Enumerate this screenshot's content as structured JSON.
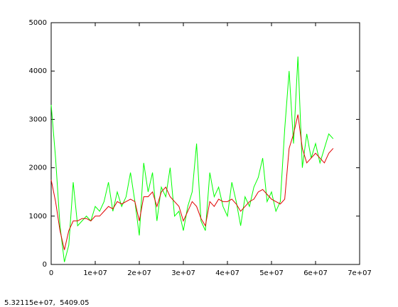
{
  "chart_data": {
    "type": "line",
    "x": [
      0,
      1000000,
      2000000,
      3000000,
      4000000,
      5000000,
      6000000,
      7000000,
      8000000,
      9000000,
      10000000,
      11000000,
      12000000,
      13000000,
      14000000,
      15000000,
      16000000,
      17000000,
      18000000,
      19000000,
      20000000,
      21000000,
      22000000,
      23000000,
      24000000,
      25000000,
      26000000,
      27000000,
      28000000,
      29000000,
      30000000,
      31000000,
      32000000,
      33000000,
      34000000,
      35000000,
      36000000,
      37000000,
      38000000,
      39000000,
      40000000,
      41000000,
      42000000,
      43000000,
      44000000,
      45000000,
      46000000,
      47000000,
      48000000,
      49000000,
      50000000,
      51000000,
      52000000,
      53000000,
      54000000,
      55000000,
      56000000,
      57000000,
      58000000,
      59000000,
      60000000,
      61000000,
      62000000,
      63000000,
      64000000
    ],
    "series": [
      {
        "color": "#00ff00",
        "values": [
          3300,
          2200,
          800,
          50,
          400,
          1700,
          800,
          900,
          1000,
          900,
          1200,
          1100,
          1300,
          1700,
          1100,
          1500,
          1200,
          1400,
          1900,
          1300,
          600,
          2100,
          1500,
          1900,
          900,
          1600,
          1400,
          2000,
          1000,
          1100,
          700,
          1200,
          1500,
          2500,
          900,
          700,
          1900,
          1400,
          1600,
          1200,
          1000,
          1700,
          1300,
          800,
          1400,
          1200,
          1600,
          1800,
          2200,
          1300,
          1500,
          1100,
          1300,
          2800,
          4000,
          2500,
          4300,
          2000,
          2700,
          2200,
          2500,
          2100,
          2400,
          2700,
          2600
        ]
      },
      {
        "color": "#e00000",
        "values": [
          1750,
          1300,
          700,
          300,
          700,
          900,
          900,
          950,
          950,
          900,
          1000,
          1000,
          1100,
          1200,
          1150,
          1300,
          1250,
          1300,
          1350,
          1300,
          900,
          1400,
          1400,
          1500,
          1200,
          1500,
          1600,
          1400,
          1300,
          1200,
          900,
          1100,
          1300,
          1200,
          950,
          800,
          1300,
          1200,
          1350,
          1300,
          1300,
          1350,
          1250,
          1100,
          1200,
          1300,
          1350,
          1500,
          1550,
          1450,
          1350,
          1300,
          1250,
          1350,
          2400,
          2700,
          3100,
          2400,
          2100,
          2200,
          2300,
          2200,
          2100,
          2300,
          2400
        ]
      }
    ],
    "xlim": [
      0,
      70000000
    ],
    "xticks": [
      0,
      {
        "value": 10000000,
        "label": "1e+07"
      },
      {
        "value": 20000000,
        "label": "2e+07"
      },
      {
        "value": 30000000,
        "label": "3e+07"
      },
      {
        "value": 40000000,
        "label": "4e+07"
      },
      {
        "value": 50000000,
        "label": "5e+07"
      },
      {
        "value": 60000000,
        "label": "6e+07"
      },
      {
        "value": 70000000,
        "label": "7e+07"
      }
    ],
    "ylim": [
      0,
      5000
    ],
    "yticks": [
      0,
      1000,
      2000,
      3000,
      4000,
      5000
    ]
  },
  "status_text": "5.32115e+07,  5409.05"
}
